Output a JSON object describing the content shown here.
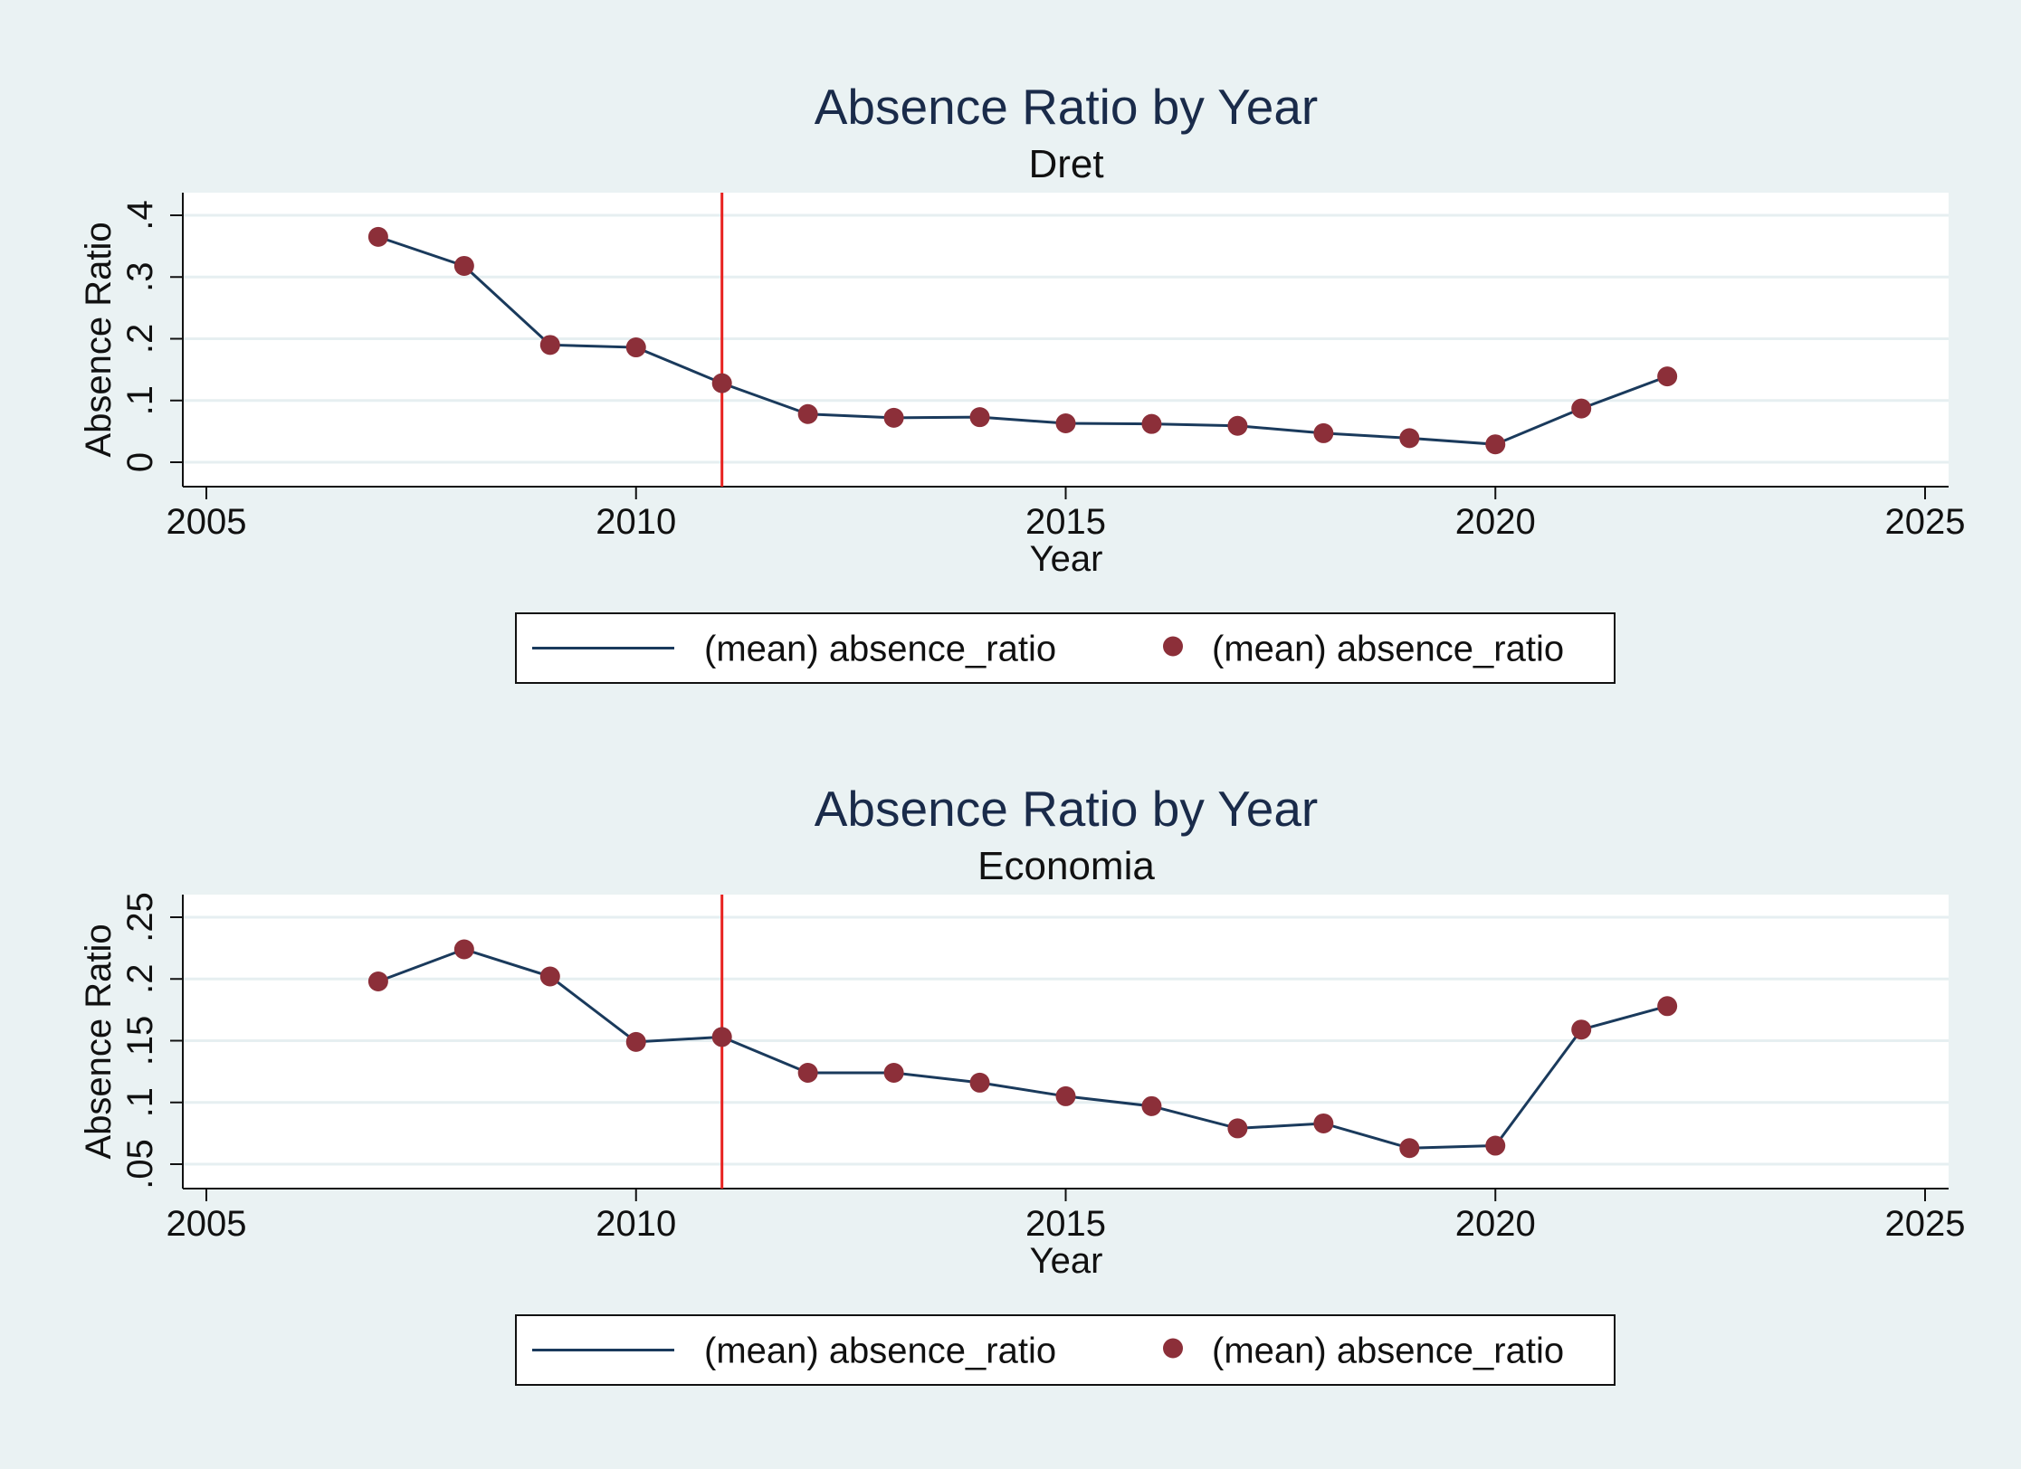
{
  "chart_data": [
    {
      "type": "line",
      "title": "Absence Ratio by Year",
      "subtitle": "Dret",
      "xlabel": "Year",
      "ylabel": "Absence Ratio",
      "xlim": [
        2005,
        2025
      ],
      "ylim": [
        0,
        0.4
      ],
      "xticks": [
        2005,
        2010,
        2015,
        2020,
        2025
      ],
      "xtick_labels": [
        "2005",
        "2010",
        "2015",
        "2020",
        "2025"
      ],
      "yticks": [
        0,
        0.1,
        0.2,
        0.3,
        0.4
      ],
      "ytick_labels": [
        "0",
        ".1",
        ".2",
        ".3",
        ".4"
      ],
      "grid": true,
      "reference_line": {
        "x": 2011,
        "color": "#e8221f"
      },
      "x": [
        2007,
        2008,
        2009,
        2010,
        2011,
        2012,
        2013,
        2014,
        2015,
        2016,
        2017,
        2018,
        2019,
        2020,
        2021,
        2022
      ],
      "series": [
        {
          "name": "(mean) absence_ratio",
          "kind": "line",
          "color": "#1a3a5c",
          "values": [
            0.365,
            0.318,
            0.19,
            0.186,
            0.128,
            0.078,
            0.072,
            0.073,
            0.063,
            0.062,
            0.059,
            0.047,
            0.039,
            0.029,
            0.087,
            0.139
          ]
        },
        {
          "name": "(mean) absence_ratio",
          "kind": "scatter",
          "color": "#8c2f39",
          "values": [
            0.365,
            0.318,
            0.19,
            0.186,
            0.128,
            0.078,
            0.072,
            0.073,
            0.063,
            0.062,
            0.059,
            0.047,
            0.039,
            0.029,
            0.087,
            0.139
          ]
        }
      ],
      "legend_position": "bottom"
    },
    {
      "type": "line",
      "title": "Absence Ratio by Year",
      "subtitle": "Economia",
      "xlabel": "Year",
      "ylabel": "Absence Ratio",
      "xlim": [
        2005,
        2025
      ],
      "ylim": [
        0.05,
        0.25
      ],
      "xticks": [
        2005,
        2010,
        2015,
        2020,
        2025
      ],
      "xtick_labels": [
        "2005",
        "2010",
        "2015",
        "2020",
        "2025"
      ],
      "yticks": [
        0.05,
        0.1,
        0.15,
        0.2,
        0.25
      ],
      "ytick_labels": [
        ".05",
        ".1",
        ".15",
        ".2",
        ".25"
      ],
      "grid": true,
      "reference_line": {
        "x": 2011,
        "color": "#e8221f"
      },
      "x": [
        2007,
        2008,
        2009,
        2010,
        2011,
        2012,
        2013,
        2014,
        2015,
        2016,
        2017,
        2018,
        2019,
        2020,
        2021,
        2022
      ],
      "series": [
        {
          "name": "(mean) absence_ratio",
          "kind": "line",
          "color": "#1a3a5c",
          "values": [
            0.198,
            0.224,
            0.202,
            0.149,
            0.153,
            0.124,
            0.124,
            0.116,
            0.105,
            0.097,
            0.079,
            0.083,
            0.063,
            0.065,
            0.159,
            0.178
          ]
        },
        {
          "name": "(mean) absence_ratio",
          "kind": "scatter",
          "color": "#8c2f39",
          "values": [
            0.198,
            0.224,
            0.202,
            0.149,
            0.153,
            0.124,
            0.124,
            0.116,
            0.105,
            0.097,
            0.079,
            0.083,
            0.063,
            0.065,
            0.159,
            0.178
          ]
        }
      ],
      "legend_position": "bottom"
    }
  ]
}
